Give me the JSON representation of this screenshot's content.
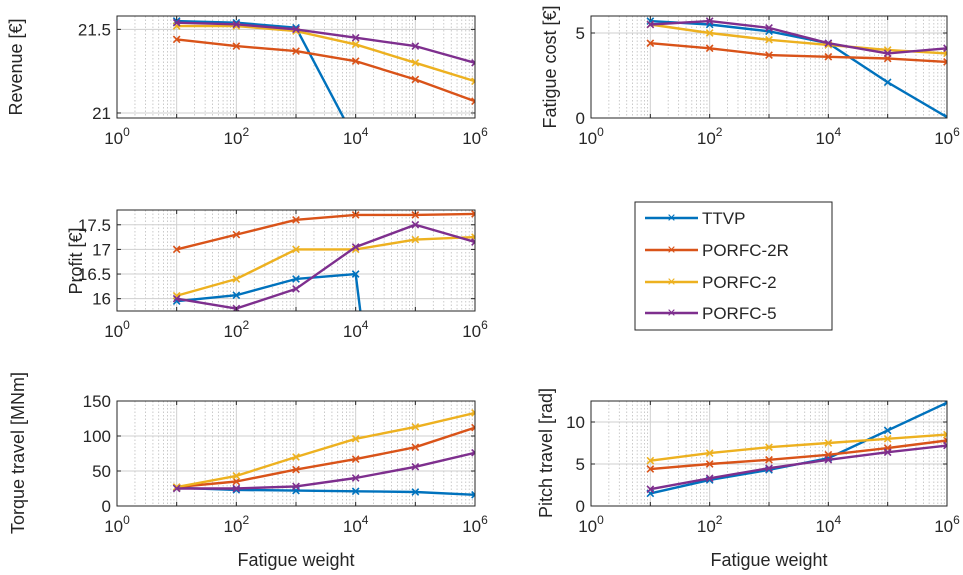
{
  "colors": {
    "TTVP": "#0072BD",
    "PORFC-2R": "#D95319",
    "PORFC-2": "#EDB120",
    "PORFC-5": "#7E2F8E",
    "grid_major": "#cfcfcf",
    "grid_minor": "#bdbdbd",
    "axis": "#262626"
  },
  "legend": {
    "placement": "middle-right",
    "entries": [
      "TTVP",
      "PORFC-2R",
      "PORFC-2",
      "PORFC-5"
    ]
  },
  "chart_data": [
    {
      "id": "revenue",
      "type": "line",
      "xlabel": "",
      "ylabel": "Revenue [€]",
      "xscale": "log",
      "xlim": [
        1,
        1000000
      ],
      "ylim": [
        20.97,
        21.58
      ],
      "yticks": [
        21,
        21.5
      ],
      "ytick_labels": [
        "21",
        "21.5"
      ],
      "grid": true,
      "x": [
        10,
        100,
        1000,
        10000,
        100000,
        1000000
      ],
      "series": [
        {
          "name": "TTVP",
          "x": [
            10,
            100,
            1000,
            8000
          ],
          "values": [
            21.55,
            21.54,
            21.51,
            20.9
          ]
        },
        {
          "name": "PORFC-2R",
          "x": [
            10,
            100,
            1000,
            10000,
            100000,
            1000000
          ],
          "values": [
            21.44,
            21.4,
            21.37,
            21.31,
            21.2,
            21.07
          ]
        },
        {
          "name": "PORFC-2",
          "x": [
            10,
            100,
            1000,
            10000,
            100000,
            1000000
          ],
          "values": [
            21.52,
            21.52,
            21.49,
            21.41,
            21.3,
            21.19
          ]
        },
        {
          "name": "PORFC-5",
          "x": [
            10,
            100,
            1000,
            10000,
            100000,
            1000000
          ],
          "values": [
            21.54,
            21.53,
            21.5,
            21.45,
            21.4,
            21.3
          ]
        }
      ]
    },
    {
      "id": "fatigue_cost",
      "type": "line",
      "xlabel": "",
      "ylabel": "Fatigue cost [€]",
      "xscale": "log",
      "xlim": [
        1,
        1000000
      ],
      "ylim": [
        0,
        6
      ],
      "yticks": [
        0,
        5
      ],
      "ytick_labels": [
        "0",
        "5"
      ],
      "grid": true,
      "series": [
        {
          "name": "TTVP",
          "x": [
            10,
            100,
            1000,
            10000,
            100000,
            1000000
          ],
          "values": [
            5.7,
            5.5,
            5.1,
            4.4,
            2.1,
            0.05
          ]
        },
        {
          "name": "PORFC-2R",
          "x": [
            10,
            100,
            1000,
            10000,
            100000,
            1000000
          ],
          "values": [
            4.4,
            4.1,
            3.7,
            3.6,
            3.5,
            3.3
          ]
        },
        {
          "name": "PORFC-2",
          "x": [
            10,
            100,
            1000,
            10000,
            100000,
            1000000
          ],
          "values": [
            5.5,
            5.0,
            4.6,
            4.3,
            4.0,
            3.8
          ]
        },
        {
          "name": "PORFC-5",
          "x": [
            10,
            100,
            1000,
            10000,
            100000,
            1000000
          ],
          "values": [
            5.5,
            5.7,
            5.3,
            4.4,
            3.8,
            4.1
          ]
        }
      ]
    },
    {
      "id": "profit",
      "type": "line",
      "xlabel": "",
      "ylabel": "Profit [€]",
      "xscale": "log",
      "xlim": [
        1,
        1000000
      ],
      "ylim": [
        15.75,
        17.8
      ],
      "yticks": [
        16,
        16.5,
        17,
        17.5
      ],
      "ytick_labels": [
        "16",
        "16.5",
        "17",
        "17.5"
      ],
      "grid": true,
      "series": [
        {
          "name": "TTVP",
          "x": [
            10,
            100,
            1000,
            10000,
            13000
          ],
          "values": [
            15.95,
            16.07,
            16.4,
            16.5,
            15.4
          ]
        },
        {
          "name": "PORFC-2R",
          "x": [
            10,
            100,
            1000,
            10000,
            100000,
            1000000
          ],
          "values": [
            17.0,
            17.3,
            17.6,
            17.7,
            17.7,
            17.72
          ]
        },
        {
          "name": "PORFC-2",
          "x": [
            10,
            100,
            1000,
            10000,
            100000,
            1000000
          ],
          "values": [
            16.06,
            16.4,
            17.0,
            17.0,
            17.2,
            17.25
          ]
        },
        {
          "name": "PORFC-5",
          "x": [
            10,
            100,
            1000,
            10000,
            100000,
            1000000
          ],
          "values": [
            16.0,
            15.8,
            16.2,
            17.05,
            17.5,
            17.15
          ]
        }
      ]
    },
    {
      "id": "torque_travel",
      "type": "line",
      "xlabel": "Fatigue weight",
      "ylabel": "Torque travel [MNm]",
      "xscale": "log",
      "xlim": [
        1,
        1000000
      ],
      "ylim": [
        0,
        150
      ],
      "yticks": [
        0,
        50,
        100,
        150
      ],
      "ytick_labels": [
        "0",
        "50",
        "100",
        "150"
      ],
      "grid": true,
      "series": [
        {
          "name": "TTVP",
          "x": [
            10,
            100,
            1000,
            10000,
            100000,
            1000000
          ],
          "values": [
            26,
            23,
            22,
            21,
            20,
            16
          ]
        },
        {
          "name": "PORFC-2R",
          "x": [
            10,
            100,
            1000,
            10000,
            100000,
            1000000
          ],
          "values": [
            27,
            35,
            52,
            67,
            84,
            112
          ]
        },
        {
          "name": "PORFC-2",
          "x": [
            10,
            100,
            1000,
            10000,
            100000,
            1000000
          ],
          "values": [
            27,
            43,
            70,
            96,
            113,
            133
          ]
        },
        {
          "name": "PORFC-5",
          "x": [
            10,
            100,
            1000,
            10000,
            100000,
            1000000
          ],
          "values": [
            25,
            25,
            28,
            40,
            56,
            76
          ]
        }
      ]
    },
    {
      "id": "pitch_travel",
      "type": "line",
      "xlabel": "Fatigue weight",
      "ylabel": "Pitch travel [rad]",
      "xscale": "log",
      "xlim": [
        1,
        1000000
      ],
      "ylim": [
        0,
        12.5
      ],
      "yticks": [
        0,
        5,
        10
      ],
      "ytick_labels": [
        "0",
        "5",
        "10"
      ],
      "grid": true,
      "series": [
        {
          "name": "TTVP",
          "x": [
            10,
            100,
            1000,
            10000,
            100000,
            1000000
          ],
          "values": [
            1.5,
            3.1,
            4.3,
            5.7,
            9.0,
            12.3
          ]
        },
        {
          "name": "PORFC-2R",
          "x": [
            10,
            100,
            1000,
            10000,
            100000,
            1000000
          ],
          "values": [
            4.4,
            5.0,
            5.5,
            6.1,
            6.9,
            7.8
          ]
        },
        {
          "name": "PORFC-2",
          "x": [
            10,
            100,
            1000,
            10000,
            100000,
            1000000
          ],
          "values": [
            5.4,
            6.3,
            7.0,
            7.5,
            8.0,
            8.5
          ]
        },
        {
          "name": "PORFC-5",
          "x": [
            10,
            100,
            1000,
            10000,
            100000,
            1000000
          ],
          "values": [
            2.0,
            3.3,
            4.5,
            5.5,
            6.4,
            7.2
          ]
        }
      ]
    }
  ],
  "xtick_labels": [
    {
      "base": "10",
      "exp": "0"
    },
    {
      "base": "10",
      "exp": "2"
    },
    {
      "base": "10",
      "exp": "4"
    },
    {
      "base": "10",
      "exp": "6"
    }
  ]
}
